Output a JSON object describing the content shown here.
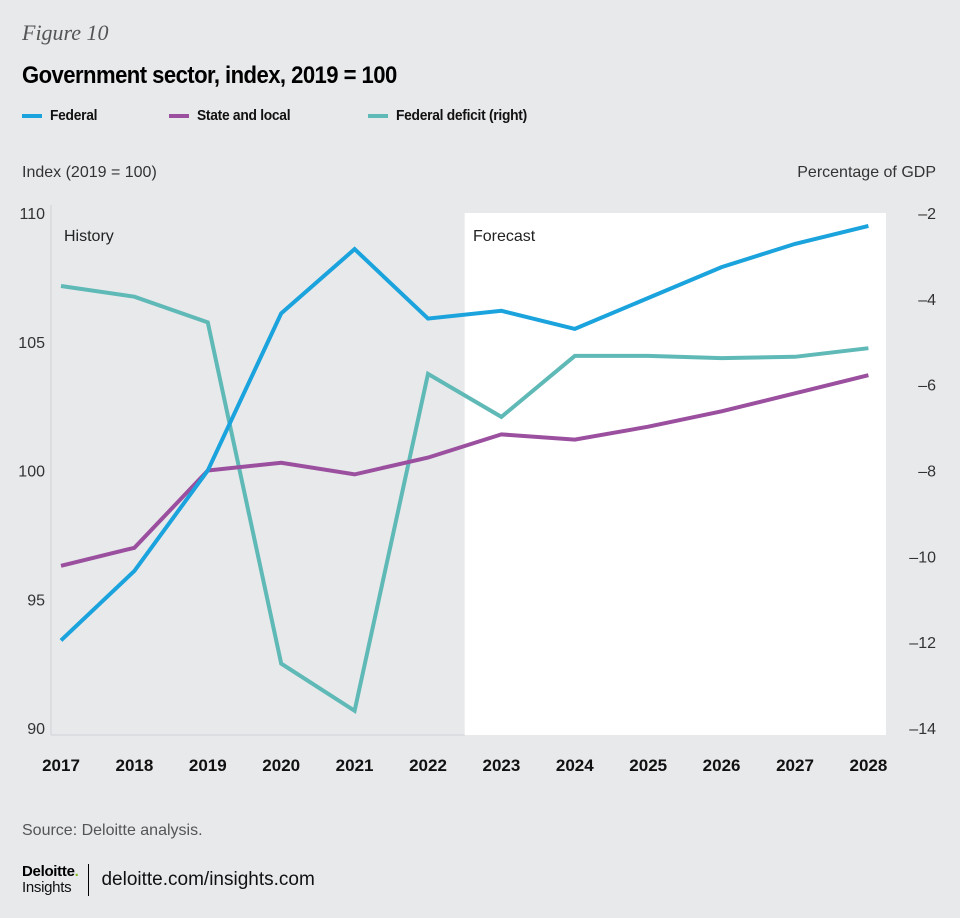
{
  "figure_label": "Figure 10",
  "source": "Source: Deloitte analysis.",
  "brand": {
    "name": "Deloitte",
    "dot": ".",
    "sub": "Insights",
    "url": "deloitte.com/insights.com"
  },
  "chart_data": {
    "type": "line",
    "title": "Government sector, index, 2019 = 100",
    "ylabel_left": "Index (2019 = 100)",
    "ylabel_right": "Percentage of GDP",
    "x": [
      "2017",
      "2018",
      "2019",
      "2020",
      "2021",
      "2022",
      "2023",
      "2024",
      "2025",
      "2026",
      "2027",
      "2028"
    ],
    "ylim_left": [
      90,
      110
    ],
    "yticks_left": [
      90,
      95,
      100,
      105,
      110
    ],
    "ylim_right": [
      -14,
      -2
    ],
    "yticks_right": [
      -14,
      -12,
      -10,
      -8,
      -6,
      -4,
      -2
    ],
    "ytick_labels_right": [
      "–14",
      "–12",
      "–10",
      "–8",
      "–6",
      "–4",
      "–2"
    ],
    "regions": [
      {
        "label": "History",
        "from": "2017",
        "to": "2022.5"
      },
      {
        "label": "Forecast",
        "from": "2022.5",
        "to": "2028"
      }
    ],
    "legend_position": "top-left",
    "grid": false,
    "series": [
      {
        "name": "Federal",
        "axis": "left",
        "color": "#1aa3dc",
        "values": [
          93.4,
          96.1,
          100.0,
          106.1,
          108.6,
          105.9,
          106.2,
          105.5,
          106.7,
          107.9,
          108.8,
          109.5
        ]
      },
      {
        "name": "State and local",
        "axis": "left",
        "color": "#9b4f9f",
        "values": [
          96.3,
          97.0,
          100.0,
          100.3,
          99.85,
          100.5,
          101.4,
          101.2,
          101.7,
          102.3,
          103.0,
          103.7
        ]
      },
      {
        "name": "Federal deficit (right)",
        "axis": "right",
        "color": "#5fb9b6",
        "values": [
          -3.7,
          -3.95,
          -4.55,
          -12.5,
          -13.6,
          -5.75,
          -6.75,
          -5.33,
          -5.33,
          -5.38,
          -5.35,
          -5.15
        ]
      }
    ]
  },
  "colors": {
    "background": "#e8e9eb",
    "forecast_background": "#ffffff",
    "axis_line": "#cfd1d4"
  }
}
